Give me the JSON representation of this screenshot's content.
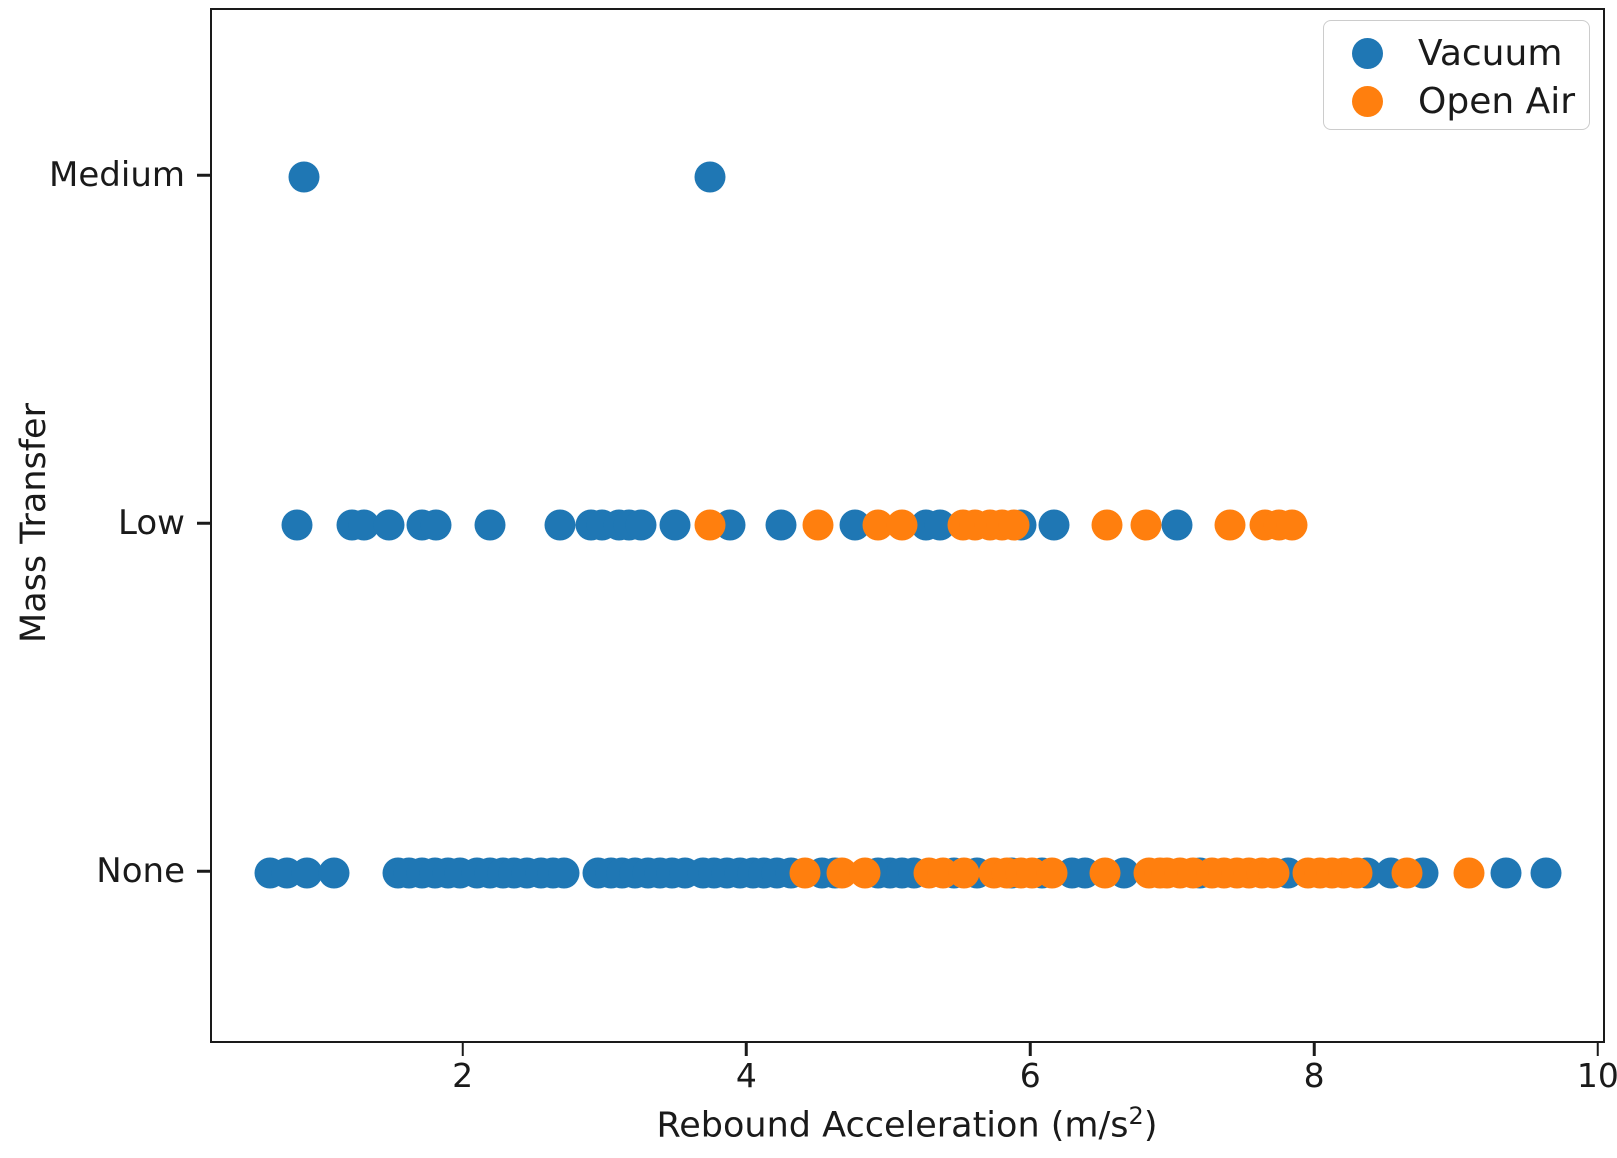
{
  "chart_data": {
    "type": "scatter",
    "title": "",
    "xlabel": "Rebound Acceleration (m/s²)",
    "xlabel_main": "Rebound Acceleration (m/s",
    "xlabel_sup": "2",
    "xlabel_close": ")",
    "ylabel": "Mass Transfer",
    "x_ticks": [
      2,
      4,
      6,
      8,
      10
    ],
    "xlim": [
      0.22,
      10.05
    ],
    "y_categories": [
      "None",
      "Low",
      "Medium"
    ],
    "grid": false,
    "legend_position": "upper right",
    "legend": [
      {
        "label": "Vacuum",
        "color": "#1f77b4",
        "marker": "circle-icon"
      },
      {
        "label": "Open Air",
        "color": "#ff7f0e",
        "marker": "circle-icon"
      }
    ],
    "series": [
      {
        "name": "Vacuum",
        "color": "#1f77b4",
        "points": {
          "Medium": [
            0.87,
            3.73
          ],
          "Low": [
            0.82,
            1.21,
            1.29,
            1.47,
            1.7,
            1.8,
            2.18,
            2.67,
            2.89,
            2.97,
            3.09,
            3.16,
            3.24,
            3.48,
            3.87,
            4.23,
            4.75,
            5.25,
            5.35,
            5.92,
            6.15,
            7.02
          ],
          "None": [
            0.63,
            0.75,
            0.89,
            1.08,
            1.53,
            1.61,
            1.7,
            1.79,
            1.88,
            1.97,
            2.09,
            2.18,
            2.27,
            2.35,
            2.44,
            2.54,
            2.62,
            2.7,
            2.94,
            3.03,
            3.11,
            3.2,
            3.29,
            3.38,
            3.46,
            3.55,
            3.68,
            3.76,
            3.85,
            3.94,
            4.03,
            4.11,
            4.2,
            4.3,
            4.52,
            4.61,
            4.91,
            5.0,
            5.08,
            5.17,
            5.45,
            5.61,
            5.86,
            6.07,
            6.28,
            6.37,
            6.65,
            7.18,
            7.8,
            8.36,
            8.53,
            8.75,
            9.34,
            9.62
          ]
        }
      },
      {
        "name": "Open Air",
        "color": "#ff7f0e",
        "points": {
          "Medium": [],
          "Low": [
            3.73,
            4.49,
            4.91,
            5.08,
            5.51,
            5.6,
            5.7,
            5.79,
            5.87,
            6.53,
            6.8,
            7.39,
            7.64,
            7.74,
            7.83
          ],
          "None": [
            4.4,
            4.66,
            4.82,
            5.27,
            5.37,
            5.52,
            5.73,
            5.82,
            5.92,
            6.0,
            6.14,
            6.51,
            6.82,
            6.9,
            6.95,
            7.04,
            7.13,
            7.27,
            7.35,
            7.44,
            7.53,
            7.62,
            7.7,
            7.94,
            8.03,
            8.11,
            8.2,
            8.29,
            8.64,
            9.08
          ]
        }
      }
    ]
  }
}
